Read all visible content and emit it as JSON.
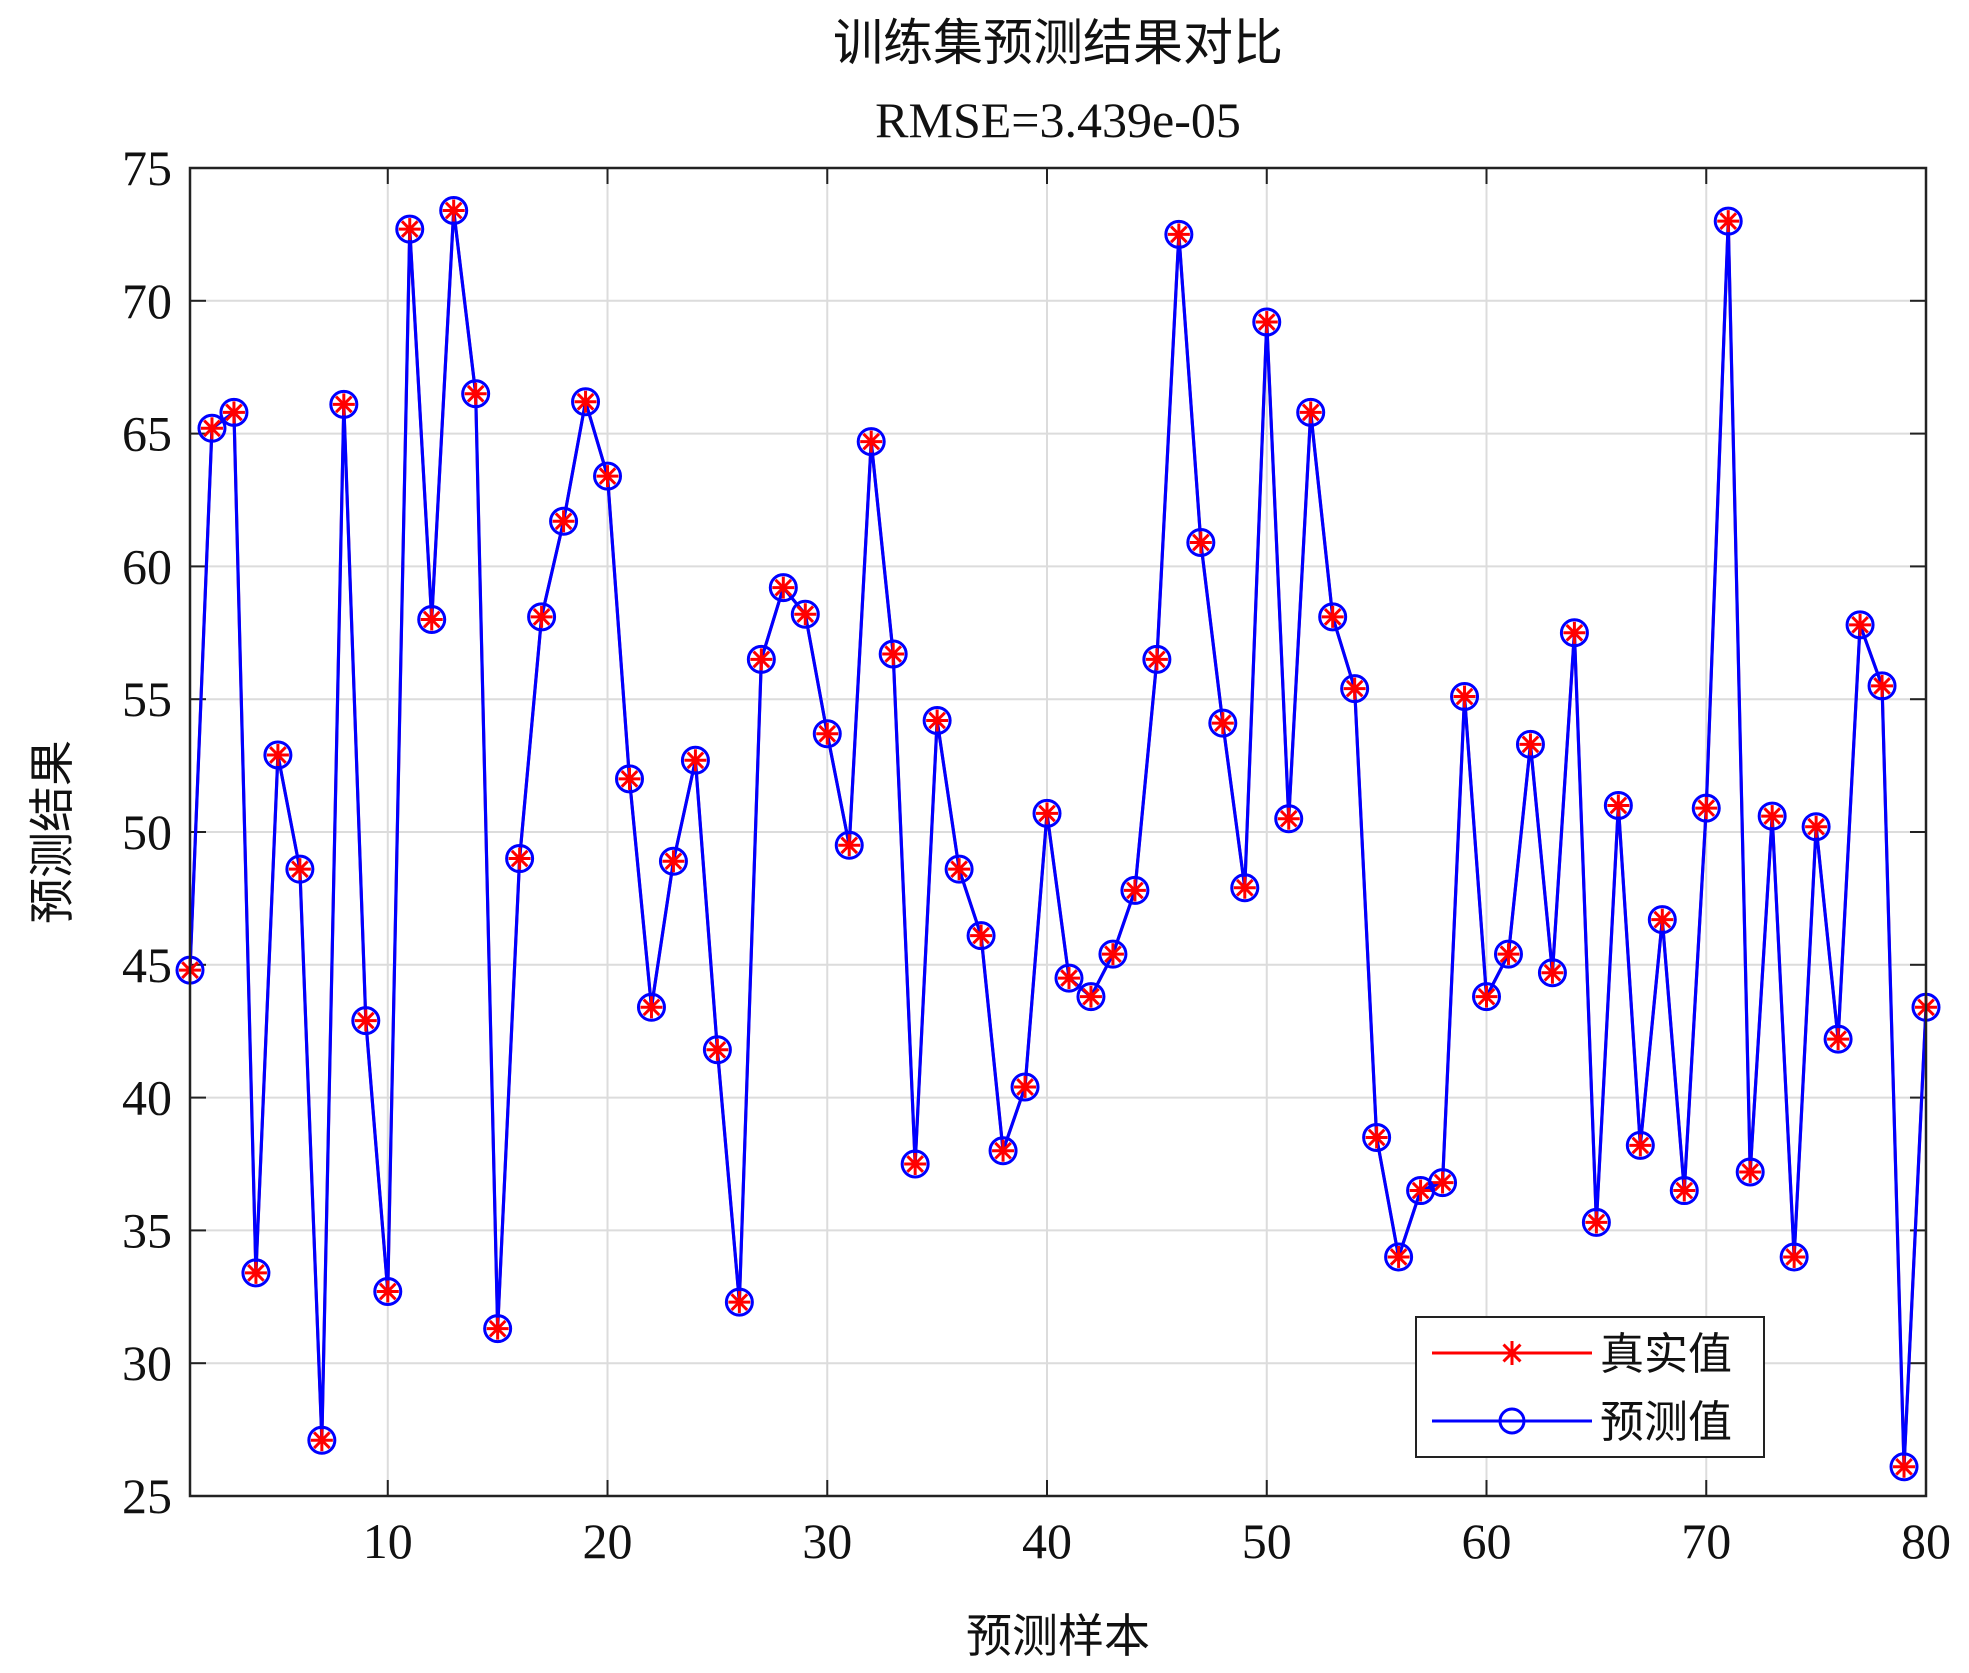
{
  "chart_data": {
    "type": "line",
    "title": "训练集预测结果对比",
    "subtitle": "RMSE=3.439e-05",
    "xlabel": "预测样本",
    "ylabel": "预测结果",
    "xlim": [
      1,
      80
    ],
    "ylim": [
      25,
      75
    ],
    "xticks": [
      10,
      20,
      30,
      40,
      50,
      60,
      70,
      80
    ],
    "yticks": [
      25,
      30,
      35,
      40,
      45,
      50,
      55,
      60,
      65,
      70,
      75
    ],
    "grid": true,
    "legend_position": "bottom-right",
    "series": [
      {
        "name": "真实值",
        "color": "#ff0000",
        "marker": "asterisk",
        "values": [
          44.8,
          65.2,
          65.8,
          33.4,
          52.9,
          48.6,
          27.1,
          66.1,
          42.9,
          32.7,
          72.7,
          58.0,
          73.4,
          66.5,
          31.3,
          49.0,
          58.1,
          61.7,
          66.2,
          63.4,
          52.0,
          43.4,
          48.9,
          52.7,
          41.8,
          32.3,
          56.5,
          59.2,
          58.2,
          53.7,
          49.5,
          64.7,
          56.7,
          37.5,
          54.2,
          48.6,
          46.1,
          38.0,
          40.4,
          50.7,
          44.5,
          43.8,
          45.4,
          47.8,
          56.5,
          72.5,
          60.9,
          54.1,
          47.9,
          69.2,
          50.5,
          65.8,
          58.1,
          55.4,
          38.5,
          34.0,
          36.5,
          36.8,
          55.1,
          43.8,
          45.4,
          53.3,
          44.7,
          57.5,
          35.3,
          51.0,
          38.2,
          46.7,
          36.5,
          50.9,
          73.0,
          37.2,
          50.6,
          34.0,
          50.2,
          42.2,
          57.8,
          55.5,
          26.1,
          43.4
        ]
      },
      {
        "name": "预测值",
        "color": "#0000ff",
        "marker": "circle",
        "values": [
          44.8,
          65.2,
          65.8,
          33.4,
          52.9,
          48.6,
          27.1,
          66.1,
          42.9,
          32.7,
          72.7,
          58.0,
          73.4,
          66.5,
          31.3,
          49.0,
          58.1,
          61.7,
          66.2,
          63.4,
          52.0,
          43.4,
          48.9,
          52.7,
          41.8,
          32.3,
          56.5,
          59.2,
          58.2,
          53.7,
          49.5,
          64.7,
          56.7,
          37.5,
          54.2,
          48.6,
          46.1,
          38.0,
          40.4,
          50.7,
          44.5,
          43.8,
          45.4,
          47.8,
          56.5,
          72.5,
          60.9,
          54.1,
          47.9,
          69.2,
          50.5,
          65.8,
          58.1,
          55.4,
          38.5,
          34.0,
          36.5,
          36.8,
          55.1,
          43.8,
          45.4,
          53.3,
          44.7,
          57.5,
          35.3,
          51.0,
          38.2,
          46.7,
          36.5,
          50.9,
          73.0,
          37.2,
          50.6,
          34.0,
          50.2,
          42.2,
          57.8,
          55.5,
          26.1,
          43.4
        ]
      }
    ]
  }
}
